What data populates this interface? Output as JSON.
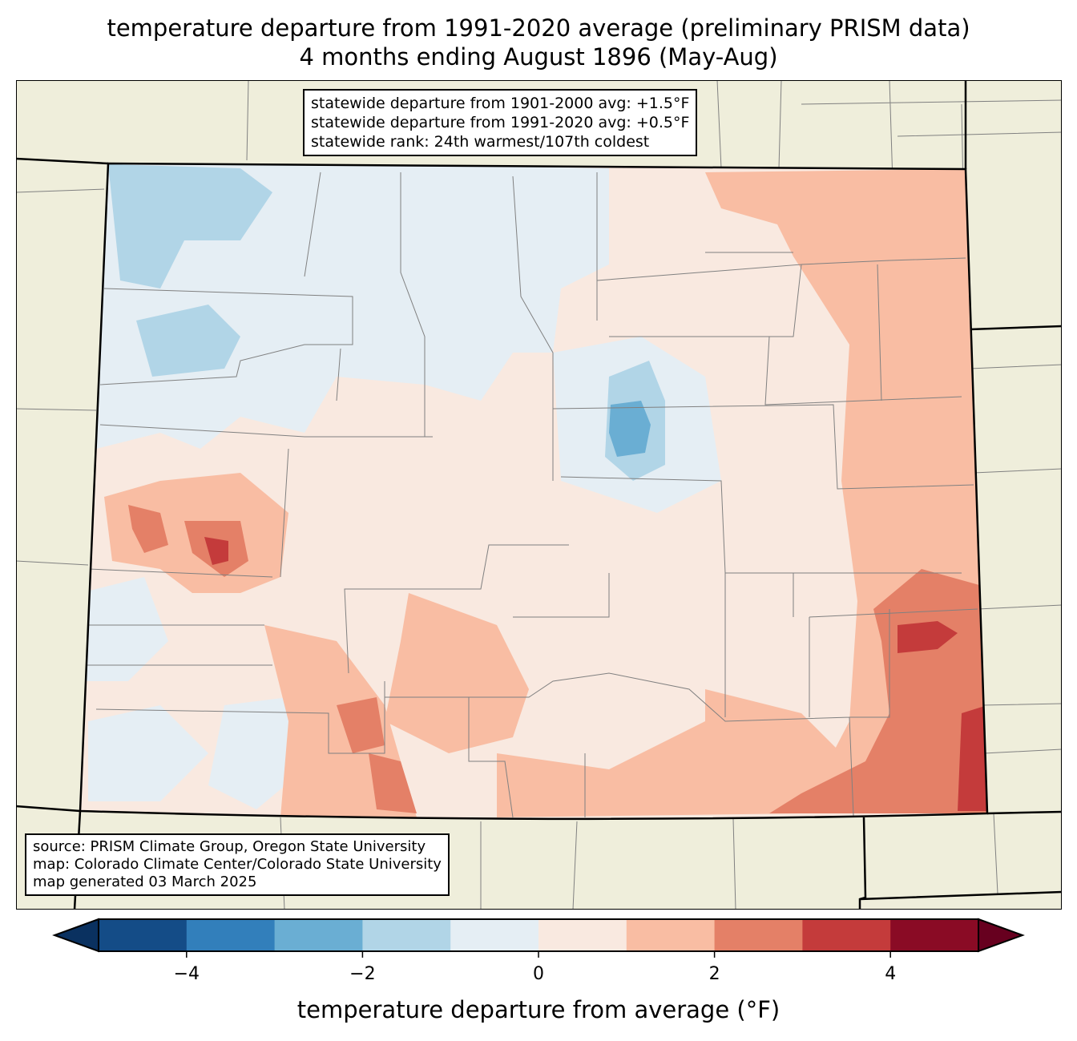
{
  "title": {
    "line1": "temperature departure from 1991-2020 average (preliminary PRISM data)",
    "line2": "4 months ending August 1896 (May-Aug)"
  },
  "stats": {
    "line1": "statewide departure from 1901-2000 avg: +1.5°F",
    "line2": "statewide departure from 1991-2020 avg: +0.5°F",
    "line3": "statewide rank: 24th warmest/107th coldest"
  },
  "credits": {
    "line1": "source: PRISM Climate Group, Oregon State University",
    "line2": "map: Colorado Climate Center/Colorado State University",
    "line3": "map generated 03 March 2025"
  },
  "colorbar": {
    "label": "temperature departure from average (°F)",
    "range": [
      -5,
      5
    ],
    "levels": [
      -5,
      -4,
      -3,
      -2,
      -1,
      0,
      1,
      2,
      3,
      4,
      5
    ],
    "colors": [
      "#144c87",
      "#327fbb",
      "#6aaed3",
      "#b1d5e7",
      "#e5eef4",
      "#f9e9e0",
      "#f9bda3",
      "#e48067",
      "#c43b3b",
      "#8a0b25"
    ],
    "under_color": "#0a3160",
    "over_color": "#67001f",
    "ticks": [
      "−4",
      "−2",
      "0",
      "2",
      "4"
    ]
  },
  "map_colors": {
    "land": "#efeedb",
    "border": "#808080"
  }
}
